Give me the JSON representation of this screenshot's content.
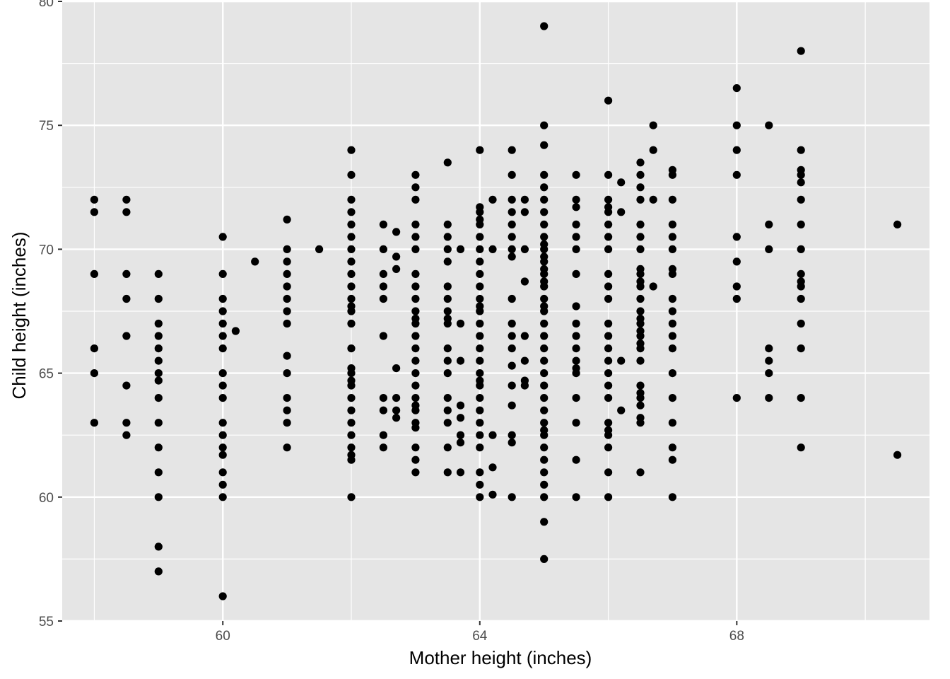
{
  "chart_data": {
    "type": "scatter",
    "title": "",
    "xlabel": "Mother height (inches)",
    "ylabel": "Child height (inches)",
    "xlim": [
      57.5,
      71.0
    ],
    "ylim": [
      55,
      80
    ],
    "x_ticks": [
      60,
      64,
      68
    ],
    "y_ticks": [
      55,
      60,
      65,
      70,
      75,
      80
    ],
    "grid": true,
    "legend": "none",
    "colors": {
      "panel": "#e5e5e5",
      "grid": "#ffffff",
      "point": "#000000"
    },
    "points": [
      [
        58,
        72
      ],
      [
        58,
        71.5
      ],
      [
        58,
        69
      ],
      [
        58,
        66
      ],
      [
        58,
        65
      ],
      [
        58,
        63
      ],
      [
        58.5,
        72
      ],
      [
        58.5,
        71.5
      ],
      [
        58.5,
        69
      ],
      [
        58.5,
        68
      ],
      [
        58.5,
        66.5
      ],
      [
        58.5,
        64.5
      ],
      [
        58.5,
        63
      ],
      [
        58.5,
        62.5
      ],
      [
        59,
        69
      ],
      [
        59,
        68
      ],
      [
        59,
        67
      ],
      [
        59,
        66.5
      ],
      [
        59,
        66
      ],
      [
        59,
        65.5
      ],
      [
        59,
        65
      ],
      [
        59,
        64.7
      ],
      [
        59,
        64
      ],
      [
        59,
        63
      ],
      [
        59,
        62
      ],
      [
        59,
        61
      ],
      [
        59,
        60
      ],
      [
        59,
        58
      ],
      [
        59,
        57
      ],
      [
        60,
        70.5
      ],
      [
        60,
        69
      ],
      [
        60,
        68
      ],
      [
        60,
        67.5
      ],
      [
        60,
        67
      ],
      [
        60,
        66.5
      ],
      [
        60,
        66
      ],
      [
        60,
        65
      ],
      [
        60,
        64.5
      ],
      [
        60,
        64
      ],
      [
        60,
        63
      ],
      [
        60,
        62.5
      ],
      [
        60,
        62
      ],
      [
        60,
        61.7
      ],
      [
        60,
        61
      ],
      [
        60,
        60.5
      ],
      [
        60,
        60
      ],
      [
        60,
        56
      ],
      [
        60.2,
        66.7
      ],
      [
        60.5,
        69.5
      ],
      [
        61,
        71.2
      ],
      [
        61,
        70
      ],
      [
        61,
        69.5
      ],
      [
        61,
        69
      ],
      [
        61,
        68.5
      ],
      [
        61,
        68
      ],
      [
        61,
        67.5
      ],
      [
        61,
        67
      ],
      [
        61,
        65.7
      ],
      [
        61,
        65
      ],
      [
        61,
        64
      ],
      [
        61,
        63.5
      ],
      [
        61,
        63
      ],
      [
        61,
        62
      ],
      [
        61.5,
        70
      ],
      [
        62,
        74
      ],
      [
        62,
        73
      ],
      [
        62,
        72
      ],
      [
        62,
        71.5
      ],
      [
        62,
        71
      ],
      [
        62,
        70.5
      ],
      [
        62,
        70
      ],
      [
        62,
        69.5
      ],
      [
        62,
        69
      ],
      [
        62,
        68.5
      ],
      [
        62,
        68
      ],
      [
        62,
        67.7
      ],
      [
        62,
        67.5
      ],
      [
        62,
        67
      ],
      [
        62,
        66
      ],
      [
        62,
        65.2
      ],
      [
        62,
        65
      ],
      [
        62,
        64.7
      ],
      [
        62,
        64.5
      ],
      [
        62,
        64
      ],
      [
        62,
        63.5
      ],
      [
        62,
        63
      ],
      [
        62,
        62.5
      ],
      [
        62,
        62
      ],
      [
        62,
        61.7
      ],
      [
        62,
        61.5
      ],
      [
        62,
        60
      ],
      [
        62.5,
        71
      ],
      [
        62.5,
        70
      ],
      [
        62.5,
        69
      ],
      [
        62.5,
        68.5
      ],
      [
        62.5,
        68
      ],
      [
        62.5,
        66.5
      ],
      [
        62.5,
        64
      ],
      [
        62.5,
        63.5
      ],
      [
        62.5,
        62.5
      ],
      [
        62.5,
        62
      ],
      [
        62.7,
        70.7
      ],
      [
        62.7,
        69.7
      ],
      [
        62.7,
        69.2
      ],
      [
        62.7,
        65.2
      ],
      [
        62.7,
        64
      ],
      [
        62.7,
        63.5
      ],
      [
        62.7,
        63.2
      ],
      [
        63,
        73
      ],
      [
        63,
        72.5
      ],
      [
        63,
        72
      ],
      [
        63,
        71
      ],
      [
        63,
        70.5
      ],
      [
        63,
        70
      ],
      [
        63,
        69
      ],
      [
        63,
        68.5
      ],
      [
        63,
        68
      ],
      [
        63,
        67.5
      ],
      [
        63,
        67.2
      ],
      [
        63,
        67
      ],
      [
        63,
        66.5
      ],
      [
        63,
        66
      ],
      [
        63,
        65.5
      ],
      [
        63,
        65
      ],
      [
        63,
        64.5
      ],
      [
        63,
        64
      ],
      [
        63,
        63.7
      ],
      [
        63,
        63.5
      ],
      [
        63,
        63
      ],
      [
        63,
        62.8
      ],
      [
        63,
        62
      ],
      [
        63,
        61.5
      ],
      [
        63,
        61
      ],
      [
        63.5,
        73.5
      ],
      [
        63.5,
        71
      ],
      [
        63.5,
        70.5
      ],
      [
        63.5,
        70
      ],
      [
        63.5,
        69.5
      ],
      [
        63.5,
        68.5
      ],
      [
        63.5,
        68
      ],
      [
        63.5,
        67.5
      ],
      [
        63.5,
        67.2
      ],
      [
        63.5,
        67
      ],
      [
        63.5,
        66
      ],
      [
        63.5,
        65.5
      ],
      [
        63.5,
        65
      ],
      [
        63.5,
        64
      ],
      [
        63.5,
        63.5
      ],
      [
        63.5,
        63
      ],
      [
        63.5,
        62
      ],
      [
        63.5,
        61
      ],
      [
        63.7,
        70
      ],
      [
        63.7,
        67
      ],
      [
        63.7,
        65.5
      ],
      [
        63.7,
        63.7
      ],
      [
        63.7,
        63.2
      ],
      [
        63.7,
        62.5
      ],
      [
        63.7,
        62.2
      ],
      [
        63.7,
        61
      ],
      [
        64,
        74
      ],
      [
        64,
        71.7
      ],
      [
        64,
        71.5
      ],
      [
        64,
        71.2
      ],
      [
        64,
        71
      ],
      [
        64,
        70.5
      ],
      [
        64,
        70
      ],
      [
        64,
        69.5
      ],
      [
        64,
        69
      ],
      [
        64,
        68.5
      ],
      [
        64,
        68
      ],
      [
        64,
        67.7
      ],
      [
        64,
        67.5
      ],
      [
        64,
        67
      ],
      [
        64,
        66.5
      ],
      [
        64,
        66
      ],
      [
        64,
        65.5
      ],
      [
        64,
        65
      ],
      [
        64,
        64.7
      ],
      [
        64,
        64.5
      ],
      [
        64,
        64
      ],
      [
        64,
        63.5
      ],
      [
        64,
        63
      ],
      [
        64,
        62.5
      ],
      [
        64,
        62
      ],
      [
        64,
        61
      ],
      [
        64,
        60.5
      ],
      [
        64,
        60
      ],
      [
        64.2,
        72
      ],
      [
        64.2,
        70
      ],
      [
        64.2,
        62.5
      ],
      [
        64.2,
        61.2
      ],
      [
        64.2,
        60.1
      ],
      [
        64.5,
        74
      ],
      [
        64.5,
        73
      ],
      [
        64.5,
        72
      ],
      [
        64.5,
        71.5
      ],
      [
        64.5,
        71
      ],
      [
        64.5,
        70.5
      ],
      [
        64.5,
        70
      ],
      [
        64.5,
        69.7
      ],
      [
        64.5,
        68
      ],
      [
        64.5,
        67
      ],
      [
        64.5,
        66.5
      ],
      [
        64.5,
        66
      ],
      [
        64.5,
        65.3
      ],
      [
        64.5,
        64.5
      ],
      [
        64.5,
        63.7
      ],
      [
        64.5,
        62.5
      ],
      [
        64.5,
        62.2
      ],
      [
        64.5,
        60
      ],
      [
        64.7,
        72
      ],
      [
        64.7,
        71.5
      ],
      [
        64.7,
        70
      ],
      [
        64.7,
        68.7
      ],
      [
        64.7,
        66.5
      ],
      [
        64.7,
        65.5
      ],
      [
        64.7,
        64.7
      ],
      [
        64.7,
        64.5
      ],
      [
        65,
        79
      ],
      [
        65,
        75
      ],
      [
        65,
        74.2
      ],
      [
        65,
        73
      ],
      [
        65,
        72.5
      ],
      [
        65,
        72
      ],
      [
        65,
        71.5
      ],
      [
        65,
        71
      ],
      [
        65,
        70.5
      ],
      [
        65,
        70.2
      ],
      [
        65,
        70
      ],
      [
        65,
        69.7
      ],
      [
        65,
        69.5
      ],
      [
        65,
        69.2
      ],
      [
        65,
        69
      ],
      [
        65,
        68.7
      ],
      [
        65,
        68.5
      ],
      [
        65,
        68
      ],
      [
        65,
        67.7
      ],
      [
        65,
        67.5
      ],
      [
        65,
        67
      ],
      [
        65,
        66.5
      ],
      [
        65,
        66
      ],
      [
        65,
        65.5
      ],
      [
        65,
        65
      ],
      [
        65,
        64.5
      ],
      [
        65,
        64
      ],
      [
        65,
        63.5
      ],
      [
        65,
        63
      ],
      [
        65,
        62.7
      ],
      [
        65,
        62.5
      ],
      [
        65,
        62
      ],
      [
        65,
        61.5
      ],
      [
        65,
        61
      ],
      [
        65,
        60.5
      ],
      [
        65,
        60
      ],
      [
        65,
        59
      ],
      [
        65,
        57.5
      ],
      [
        65.5,
        73
      ],
      [
        65.5,
        72
      ],
      [
        65.5,
        71.7
      ],
      [
        65.5,
        71
      ],
      [
        65.5,
        70.5
      ],
      [
        65.5,
        70
      ],
      [
        65.5,
        69
      ],
      [
        65.5,
        67.7
      ],
      [
        65.5,
        67
      ],
      [
        65.5,
        66.5
      ],
      [
        65.5,
        66
      ],
      [
        65.5,
        65.5
      ],
      [
        65.5,
        65.2
      ],
      [
        65.5,
        65
      ],
      [
        65.5,
        64
      ],
      [
        65.5,
        63
      ],
      [
        65.5,
        61.5
      ],
      [
        65.5,
        60
      ],
      [
        66,
        76
      ],
      [
        66,
        73
      ],
      [
        66,
        72
      ],
      [
        66,
        71.7
      ],
      [
        66,
        71.5
      ],
      [
        66,
        71
      ],
      [
        66,
        70.5
      ],
      [
        66,
        70
      ],
      [
        66,
        69
      ],
      [
        66,
        68.5
      ],
      [
        66,
        68
      ],
      [
        66,
        67
      ],
      [
        66,
        66.5
      ],
      [
        66,
        66
      ],
      [
        66,
        65.5
      ],
      [
        66,
        65
      ],
      [
        66,
        64.5
      ],
      [
        66,
        64
      ],
      [
        66,
        63
      ],
      [
        66,
        62.7
      ],
      [
        66,
        62.5
      ],
      [
        66,
        62
      ],
      [
        66,
        61
      ],
      [
        66,
        60
      ],
      [
        66.2,
        72.7
      ],
      [
        66.2,
        71.5
      ],
      [
        66.2,
        65.5
      ],
      [
        66.2,
        63.5
      ],
      [
        66.5,
        73.5
      ],
      [
        66.5,
        73
      ],
      [
        66.5,
        72.5
      ],
      [
        66.5,
        72
      ],
      [
        66.5,
        71
      ],
      [
        66.5,
        70.5
      ],
      [
        66.5,
        70
      ],
      [
        66.5,
        69.2
      ],
      [
        66.5,
        69
      ],
      [
        66.5,
        68.7
      ],
      [
        66.5,
        68.5
      ],
      [
        66.5,
        68
      ],
      [
        66.5,
        67.5
      ],
      [
        66.5,
        67.2
      ],
      [
        66.5,
        67
      ],
      [
        66.5,
        66.7
      ],
      [
        66.5,
        66.5
      ],
      [
        66.5,
        66.2
      ],
      [
        66.5,
        66
      ],
      [
        66.5,
        65.5
      ],
      [
        66.5,
        64.5
      ],
      [
        66.5,
        64.2
      ],
      [
        66.5,
        64
      ],
      [
        66.5,
        63.7
      ],
      [
        66.5,
        63.2
      ],
      [
        66.5,
        63
      ],
      [
        66.5,
        61
      ],
      [
        66.7,
        75
      ],
      [
        66.7,
        74
      ],
      [
        66.7,
        72
      ],
      [
        66.7,
        68.5
      ],
      [
        67,
        73.2
      ],
      [
        67,
        73
      ],
      [
        67,
        72
      ],
      [
        67,
        71
      ],
      [
        67,
        70.5
      ],
      [
        67,
        70
      ],
      [
        67,
        69.2
      ],
      [
        67,
        69
      ],
      [
        67,
        68
      ],
      [
        67,
        67.5
      ],
      [
        67,
        67
      ],
      [
        67,
        66.5
      ],
      [
        67,
        66
      ],
      [
        67,
        65
      ],
      [
        67,
        64
      ],
      [
        67,
        63
      ],
      [
        67,
        62
      ],
      [
        67,
        61.5
      ],
      [
        67,
        60
      ],
      [
        68,
        76.5
      ],
      [
        68,
        75
      ],
      [
        68,
        74
      ],
      [
        68,
        73
      ],
      [
        68,
        70.5
      ],
      [
        68,
        69.5
      ],
      [
        68,
        68.5
      ],
      [
        68,
        68
      ],
      [
        68,
        64
      ],
      [
        68.5,
        75
      ],
      [
        68.5,
        71
      ],
      [
        68.5,
        70
      ],
      [
        68.5,
        66
      ],
      [
        68.5,
        65.5
      ],
      [
        68.5,
        65
      ],
      [
        68.5,
        64
      ],
      [
        69,
        78
      ],
      [
        69,
        74
      ],
      [
        69,
        73.2
      ],
      [
        69,
        73
      ],
      [
        69,
        72.7
      ],
      [
        69,
        72
      ],
      [
        69,
        71
      ],
      [
        69,
        70
      ],
      [
        69,
        69
      ],
      [
        69,
        68.7
      ],
      [
        69,
        68.5
      ],
      [
        69,
        68
      ],
      [
        69,
        67
      ],
      [
        69,
        66
      ],
      [
        69,
        64
      ],
      [
        69,
        62
      ],
      [
        70.5,
        71
      ],
      [
        70.5,
        61.7
      ]
    ]
  }
}
